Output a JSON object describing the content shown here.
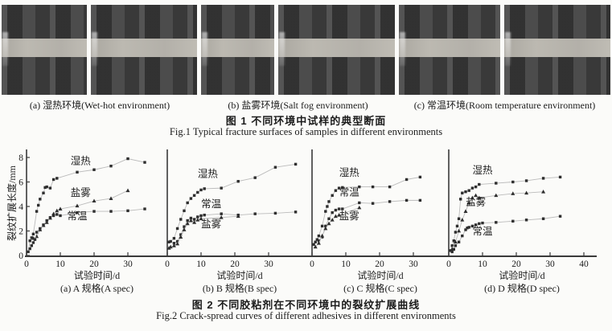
{
  "figure1": {
    "title_cn": "图 1  不同环境中试样的典型断面",
    "title_en": "Fig.1  Typical fracture surfaces of samples in different environments",
    "panels": [
      {
        "label": "(a) 湿热环境(Wet-hot environment)"
      },
      {
        "label": "(b) 盐雾环境(Salt fog environment)"
      },
      {
        "label": "(c) 常温环境(Room temperature environment)"
      }
    ]
  },
  "figure2": {
    "title_cn": "图 2  不同胶粘剂在不同环境中的裂纹扩展曲线",
    "title_en": "Fig.2  Crack-spread curves of different adhesives in different environments"
  },
  "chart_data": {
    "type": "scatter",
    "title": "图 2  不同胶粘剂在不同环境中的裂纹扩展曲线",
    "xlabel": "试验时间/d",
    "ylabel": "裂纹扩展长度/mm",
    "ylim": [
      0,
      8
    ],
    "y_ticks": [
      0,
      2,
      4,
      6,
      8
    ],
    "grid": false,
    "legend_position": "in-plot text labels",
    "marker_color": "#2e2e2e",
    "line_color": "#bbbbbb",
    "panels": [
      {
        "id": "a",
        "caption": "(a) A 规格(A spec)",
        "xlim": [
          0,
          40
        ],
        "x_ticks": [
          0,
          10,
          20,
          30
        ],
        "series": [
          {
            "name": "湿热",
            "key": "wet-hot",
            "marker": "square",
            "label_xy": [
              16,
              7.45
            ],
            "points": [
              [
                0.5,
                0.3
              ],
              [
                1,
                1.2
              ],
              [
                1.5,
                1.45
              ],
              [
                2,
                1.75
              ],
              [
                3,
                3.6
              ],
              [
                3.5,
                4.1
              ],
              [
                4,
                4.6
              ],
              [
                5,
                5.1
              ],
              [
                5.5,
                5.55
              ],
              [
                6,
                5.6
              ],
              [
                7,
                5.5
              ],
              [
                8,
                6.2
              ],
              [
                9,
                6.3
              ],
              [
                15,
                6.8
              ],
              [
                20,
                7.0
              ],
              [
                25,
                7.3
              ],
              [
                30,
                7.9
              ],
              [
                35,
                7.6
              ]
            ]
          },
          {
            "name": "盐雾",
            "key": "salt-fog",
            "marker": "triangle",
            "label_xy": [
              16,
              4.85
            ],
            "points": [
              [
                2,
                1.4
              ],
              [
                3,
                1.55
              ],
              [
                4,
                2.1
              ],
              [
                5,
                2.45
              ],
              [
                6,
                2.7
              ],
              [
                7,
                3.05
              ],
              [
                8,
                3.4
              ],
              [
                9,
                3.65
              ],
              [
                10,
                3.8
              ],
              [
                15,
                4.05
              ],
              [
                20,
                4.45
              ],
              [
                25,
                4.65
              ],
              [
                30,
                5.3
              ]
            ]
          },
          {
            "name": "常温",
            "key": "room-temp",
            "marker": "square",
            "label_xy": [
              15,
              2.95
            ],
            "points": [
              [
                1,
                0.55
              ],
              [
                1.5,
                0.8
              ],
              [
                2,
                1.05
              ],
              [
                2.5,
                1.3
              ],
              [
                3,
                1.9
              ],
              [
                4,
                2.2
              ],
              [
                5,
                2.5
              ],
              [
                6,
                2.85
              ],
              [
                7,
                3.1
              ],
              [
                8,
                3.25
              ],
              [
                9,
                3.35
              ],
              [
                10,
                3.25
              ],
              [
                15,
                3.5
              ],
              [
                20,
                3.6
              ],
              [
                25,
                3.6
              ],
              [
                30,
                3.65
              ],
              [
                35,
                3.8
              ]
            ]
          }
        ]
      },
      {
        "id": "b",
        "caption": "(b) B 规格(B spec)",
        "xlim": [
          0,
          40
        ],
        "x_ticks": [
          0,
          10,
          20,
          30
        ],
        "series": [
          {
            "name": "湿热",
            "key": "wet-hot",
            "marker": "square",
            "label_xy": [
              12,
              6.4
            ],
            "points": [
              [
                0.5,
                1.1
              ],
              [
                1,
                1.15
              ],
              [
                2,
                1.4
              ],
              [
                3,
                2.2
              ],
              [
                4,
                2.95
              ],
              [
                5,
                3.65
              ],
              [
                6,
                4.3
              ],
              [
                7,
                4.65
              ],
              [
                8,
                4.9
              ],
              [
                9,
                5.15
              ],
              [
                10,
                5.35
              ],
              [
                11,
                5.45
              ],
              [
                16,
                5.5
              ],
              [
                21,
                6.05
              ],
              [
                26,
                6.35
              ],
              [
                32,
                7.2
              ],
              [
                38,
                7.45
              ]
            ]
          },
          {
            "name": "常温",
            "key": "room-temp",
            "marker": "square",
            "label_xy": [
              13,
              3.95
            ],
            "points": [
              [
                2,
                1.0
              ],
              [
                3,
                1.15
              ],
              [
                4,
                1.7
              ],
              [
                5,
                2.35
              ],
              [
                6,
                2.85
              ],
              [
                7,
                3.05
              ],
              [
                8,
                2.95
              ],
              [
                9,
                3.15
              ],
              [
                10,
                3.25
              ],
              [
                11,
                3.3
              ],
              [
                16,
                3.4
              ],
              [
                21,
                3.3
              ],
              [
                26,
                3.4
              ],
              [
                32,
                3.45
              ],
              [
                38,
                3.55
              ]
            ]
          },
          {
            "name": "盐雾",
            "key": "salt-fog",
            "marker": "triangle",
            "label_xy": [
              13,
              2.3
            ],
            "points": [
              [
                0.5,
                0.6
              ],
              [
                1,
                0.7
              ],
              [
                2,
                0.8
              ],
              [
                3,
                0.95
              ],
              [
                4,
                1.5
              ],
              [
                5,
                2.1
              ],
              [
                6,
                2.6
              ],
              [
                7,
                2.85
              ],
              [
                8,
                2.7
              ],
              [
                9,
                2.9
              ],
              [
                10,
                3.0
              ],
              [
                16,
                3.1
              ],
              [
                21,
                3.2
              ]
            ]
          }
        ]
      },
      {
        "id": "c",
        "caption": "(c) C 规格(C spec)",
        "xlim": [
          0,
          40
        ],
        "x_ticks": [
          0,
          10,
          20,
          30
        ],
        "series": [
          {
            "name": "湿热",
            "key": "wet-hot",
            "marker": "square",
            "label_xy": [
              11,
              6.5
            ],
            "points": [
              [
                0.5,
                0.9
              ],
              [
                1,
                1.1
              ],
              [
                1.5,
                1.3
              ],
              [
                2,
                1.6
              ],
              [
                3,
                2.4
              ],
              [
                4,
                3.6
              ],
              [
                4.5,
                4.0
              ],
              [
                5,
                4.4
              ],
              [
                6,
                4.9
              ],
              [
                7,
                5.3
              ],
              [
                8,
                5.5
              ],
              [
                9,
                5.55
              ],
              [
                14,
                5.6
              ],
              [
                18,
                5.6
              ],
              [
                23,
                5.6
              ],
              [
                28,
                6.2
              ],
              [
                32,
                6.4
              ]
            ]
          },
          {
            "name": "常温",
            "key": "room-temp",
            "marker": "square",
            "label_xy": [
              11,
              4.9
            ],
            "points": [
              [
                2,
                1.2
              ],
              [
                3,
                1.5
              ],
              [
                4,
                2.4
              ],
              [
                5,
                3.0
              ],
              [
                6,
                3.5
              ],
              [
                7,
                3.7
              ],
              [
                8,
                3.8
              ],
              [
                9,
                3.8
              ],
              [
                14,
                4.3
              ],
              [
                18,
                4.25
              ],
              [
                23,
                4.4
              ],
              [
                28,
                4.5
              ],
              [
                32,
                4.5
              ]
            ]
          },
          {
            "name": "盐雾",
            "key": "salt-fog",
            "marker": "triangle",
            "label_xy": [
              11,
              2.95
            ],
            "points": [
              [
                1,
                0.7
              ],
              [
                2,
                1.0
              ],
              [
                3,
                1.6
              ],
              [
                4,
                2.2
              ],
              [
                5,
                2.6
              ],
              [
                6,
                2.9
              ],
              [
                7,
                3.2
              ],
              [
                8,
                3.3
              ],
              [
                14,
                3.9
              ]
            ]
          }
        ]
      },
      {
        "id": "d",
        "caption": "(d) D 规格(D spec)",
        "xlim": [
          0,
          40
        ],
        "x_ticks": [
          0,
          10,
          20,
          30,
          40
        ],
        "series": [
          {
            "name": "湿热",
            "key": "wet-hot",
            "marker": "square",
            "label_xy": [
              10,
              6.7
            ],
            "points": [
              [
                0.5,
                0.4
              ],
              [
                1,
                0.8
              ],
              [
                1.5,
                1.2
              ],
              [
                2,
                1.9
              ],
              [
                2.5,
                2.4
              ],
              [
                3,
                3.0
              ],
              [
                3.5,
                4.6
              ],
              [
                4,
                5.1
              ],
              [
                5,
                5.2
              ],
              [
                6,
                5.3
              ],
              [
                7,
                5.5
              ],
              [
                8,
                5.6
              ],
              [
                9,
                5.8
              ],
              [
                14,
                5.9
              ],
              [
                19,
                6.0
              ],
              [
                23,
                6.1
              ],
              [
                28,
                6.3
              ],
              [
                33,
                6.4
              ]
            ]
          },
          {
            "name": "盐雾",
            "key": "salt-fog",
            "marker": "triangle",
            "label_xy": [
              8,
              4.1
            ],
            "points": [
              [
                1,
                0.5
              ],
              [
                2,
                1.1
              ],
              [
                3,
                2.0
              ],
              [
                4,
                2.9
              ],
              [
                5,
                3.6
              ],
              [
                6,
                4.3
              ],
              [
                7,
                4.7
              ],
              [
                8,
                4.9
              ],
              [
                9,
                4.7
              ],
              [
                14,
                4.9
              ],
              [
                19,
                5.05
              ],
              [
                23,
                5.1
              ],
              [
                28,
                5.2
              ]
            ]
          },
          {
            "name": "常温",
            "key": "room-temp",
            "marker": "square",
            "label_xy": [
              10,
              1.7
            ],
            "points": [
              [
                1,
                0.3
              ],
              [
                1.5,
                0.5
              ],
              [
                2,
                0.8
              ],
              [
                3,
                1.1
              ],
              [
                4,
                1.6
              ],
              [
                5,
                2.1
              ],
              [
                5.5,
                2.25
              ],
              [
                6,
                2.3
              ],
              [
                7,
                2.4
              ],
              [
                8,
                2.5
              ],
              [
                9,
                2.6
              ],
              [
                10,
                2.65
              ],
              [
                14,
                2.7
              ],
              [
                19,
                2.8
              ],
              [
                23,
                2.9
              ],
              [
                28,
                3.0
              ],
              [
                33,
                3.2
              ]
            ]
          }
        ]
      }
    ]
  }
}
